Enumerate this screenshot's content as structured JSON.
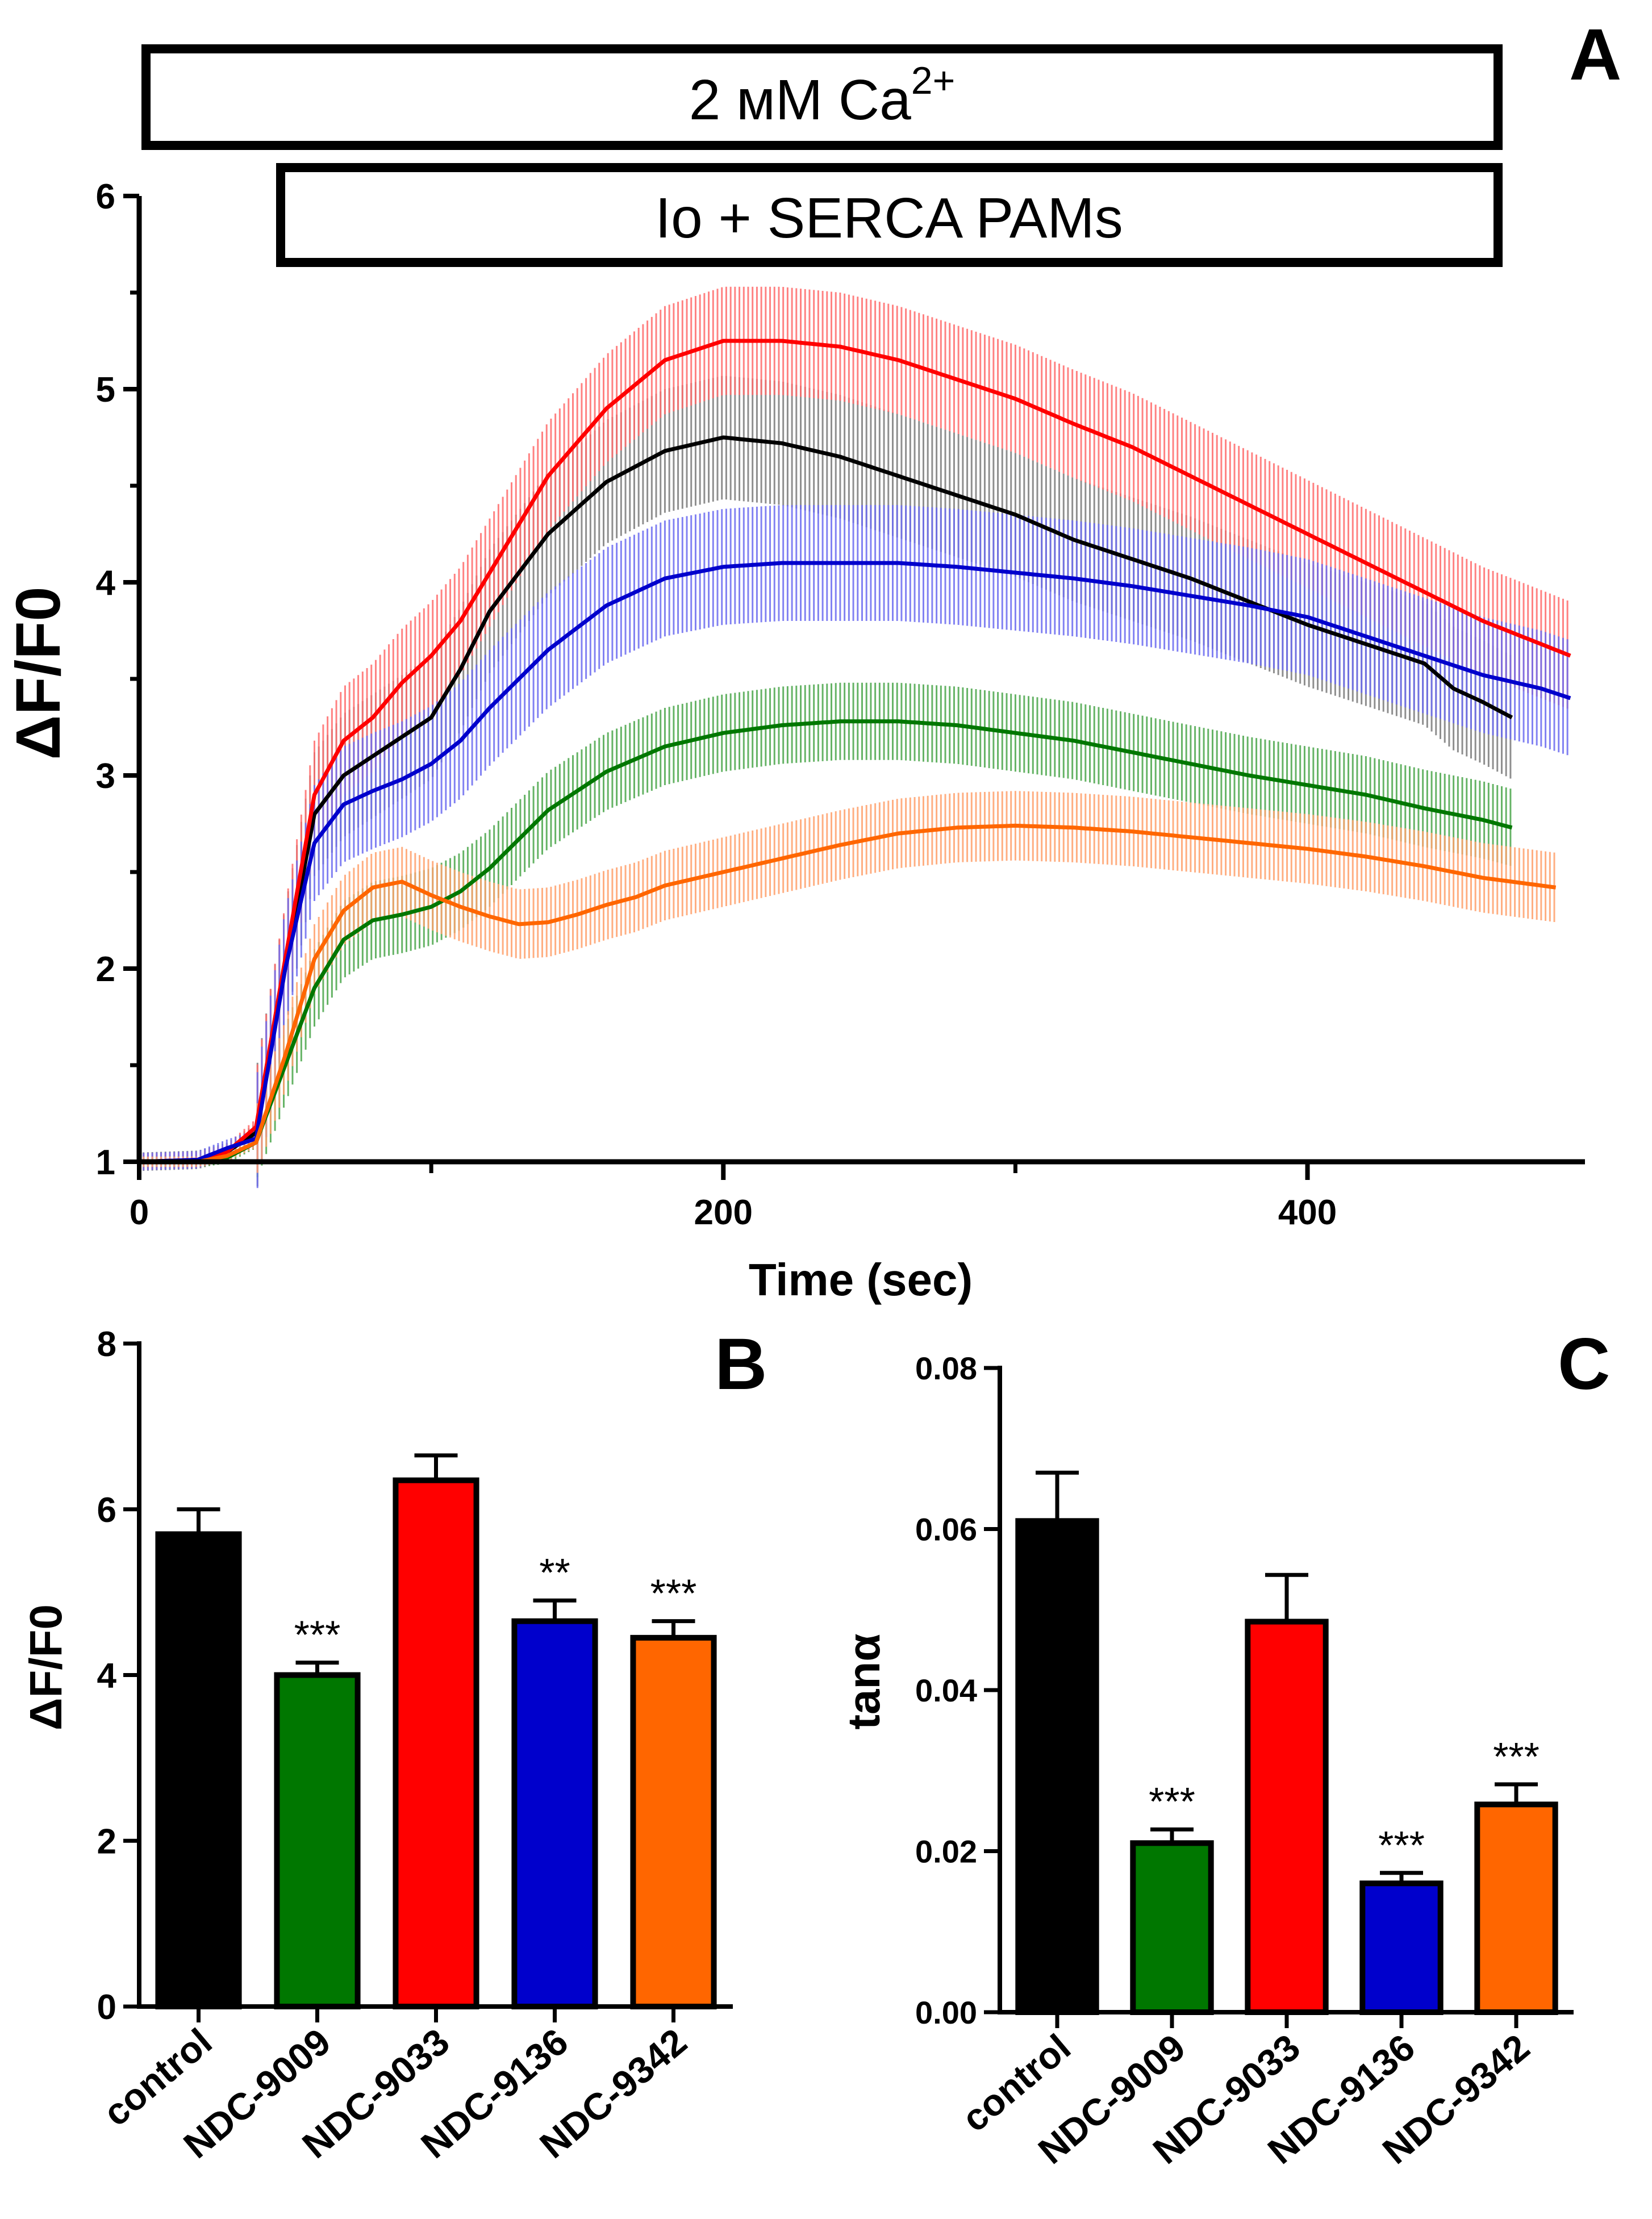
{
  "chart_data": [
    {
      "type": "line",
      "panel": "A",
      "title": "",
      "xlabel": "Time (sec)",
      "ylabel": "ΔF/F0",
      "xlim": [
        0,
        495
      ],
      "ylim": [
        1,
        6
      ],
      "xticks": [
        0,
        200,
        400
      ],
      "yticks": [
        1,
        2,
        3,
        4,
        5,
        6
      ],
      "annotations": [
        {
          "text": "2 мМ Ca",
          "superscript": "2+",
          "start": 0,
          "end": 465
        },
        {
          "text": "Io + SERCA PAMs",
          "start": 48,
          "end": 465
        }
      ],
      "series": [
        {
          "name": "control",
          "color": "#000000",
          "x": [
            0,
            20,
            30,
            40,
            50,
            60,
            70,
            80,
            90,
            100,
            110,
            120,
            140,
            160,
            180,
            200,
            220,
            240,
            260,
            280,
            300,
            320,
            340,
            360,
            380,
            400,
            420,
            440,
            450,
            460,
            470
          ],
          "y": [
            1.0,
            1.01,
            1.05,
            1.15,
            2.0,
            2.8,
            3.0,
            3.1,
            3.2,
            3.3,
            3.55,
            3.85,
            4.25,
            4.52,
            4.68,
            4.75,
            4.72,
            4.65,
            4.55,
            4.45,
            4.35,
            4.22,
            4.12,
            4.02,
            3.9,
            3.78,
            3.68,
            3.58,
            3.45,
            3.38,
            3.3
          ],
          "err": 0.32
        },
        {
          "name": "NDC-9009",
          "color": "#007700",
          "x": [
            0,
            20,
            30,
            40,
            50,
            60,
            70,
            80,
            90,
            100,
            110,
            120,
            140,
            160,
            180,
            200,
            220,
            240,
            260,
            280,
            300,
            320,
            340,
            360,
            380,
            400,
            420,
            440,
            460,
            470
          ],
          "y": [
            1.0,
            1.0,
            1.02,
            1.1,
            1.5,
            1.9,
            2.15,
            2.25,
            2.28,
            2.32,
            2.4,
            2.52,
            2.82,
            3.02,
            3.15,
            3.22,
            3.26,
            3.28,
            3.28,
            3.26,
            3.22,
            3.18,
            3.12,
            3.06,
            3.0,
            2.95,
            2.9,
            2.83,
            2.77,
            2.73
          ],
          "err": 0.2
        },
        {
          "name": "NDC-9033",
          "color": "#ff0000",
          "x": [
            0,
            20,
            30,
            40,
            50,
            60,
            70,
            80,
            90,
            100,
            110,
            120,
            140,
            160,
            180,
            200,
            220,
            240,
            260,
            280,
            300,
            320,
            340,
            360,
            380,
            400,
            420,
            440,
            460,
            480,
            490
          ],
          "y": [
            1.0,
            1.01,
            1.05,
            1.18,
            2.05,
            2.9,
            3.18,
            3.3,
            3.48,
            3.62,
            3.8,
            4.05,
            4.55,
            4.9,
            5.15,
            5.25,
            5.25,
            5.22,
            5.15,
            5.05,
            4.95,
            4.82,
            4.7,
            4.55,
            4.4,
            4.25,
            4.1,
            3.95,
            3.8,
            3.68,
            3.62
          ],
          "err": 0.28
        },
        {
          "name": "NDC-9136",
          "color": "#0000cc",
          "x": [
            0,
            20,
            30,
            40,
            50,
            60,
            70,
            80,
            90,
            100,
            110,
            120,
            140,
            160,
            180,
            200,
            220,
            240,
            260,
            280,
            300,
            320,
            340,
            360,
            380,
            400,
            420,
            440,
            460,
            480,
            490
          ],
          "y": [
            1.0,
            1.01,
            1.07,
            1.12,
            2.0,
            2.65,
            2.85,
            2.92,
            2.98,
            3.06,
            3.18,
            3.35,
            3.65,
            3.88,
            4.02,
            4.08,
            4.1,
            4.1,
            4.1,
            4.08,
            4.05,
            4.02,
            3.98,
            3.93,
            3.88,
            3.82,
            3.72,
            3.62,
            3.52,
            3.45,
            3.4
          ],
          "err": 0.3
        },
        {
          "name": "NDC-9342",
          "color": "#ff6600",
          "x": [
            0,
            20,
            30,
            40,
            50,
            60,
            70,
            80,
            90,
            100,
            110,
            120,
            130,
            140,
            150,
            160,
            170,
            180,
            200,
            220,
            240,
            260,
            280,
            300,
            320,
            340,
            360,
            380,
            400,
            420,
            440,
            450,
            460,
            480,
            485
          ],
          "y": [
            1.0,
            1.0,
            1.03,
            1.1,
            1.55,
            2.05,
            2.3,
            2.42,
            2.45,
            2.38,
            2.32,
            2.27,
            2.23,
            2.24,
            2.28,
            2.33,
            2.37,
            2.43,
            2.5,
            2.57,
            2.64,
            2.7,
            2.73,
            2.74,
            2.73,
            2.71,
            2.68,
            2.65,
            2.62,
            2.58,
            2.53,
            2.5,
            2.47,
            2.43,
            2.42
          ],
          "err": 0.18
        }
      ]
    },
    {
      "type": "bar",
      "panel": "B",
      "title": "",
      "xlabel": "",
      "ylabel": "ΔF/F0",
      "ylim": [
        0,
        8
      ],
      "yticks": [
        0,
        2,
        4,
        6,
        8
      ],
      "categories": [
        "control",
        "NDC-9009",
        "NDC-9033",
        "NDC-9136",
        "NDC-9342"
      ],
      "values": [
        5.7,
        4.0,
        6.35,
        4.65,
        4.45
      ],
      "errors": [
        0.3,
        0.15,
        0.3,
        0.25,
        0.2
      ],
      "colors": [
        "#000000",
        "#007700",
        "#ff0000",
        "#0000cc",
        "#ff6600"
      ],
      "significance": [
        "",
        "***",
        "",
        "**",
        "***"
      ]
    },
    {
      "type": "bar",
      "panel": "C",
      "title": "",
      "xlabel": "",
      "ylabel": "tanα",
      "ylim": [
        0,
        0.08
      ],
      "yticks": [
        "0.00",
        "0.02",
        "0.04",
        "0.06",
        "0.08"
      ],
      "categories": [
        "control",
        "NDC-9009",
        "NDC-9033",
        "NDC-9136",
        "NDC-9342"
      ],
      "values": [
        0.061,
        0.021,
        0.0485,
        0.016,
        0.0258
      ],
      "errors": [
        0.006,
        0.0017,
        0.0058,
        0.0013,
        0.0025
      ],
      "colors": [
        "#000000",
        "#007700",
        "#ff0000",
        "#0000cc",
        "#ff6600"
      ],
      "significance": [
        "",
        "***",
        "",
        "***",
        "***"
      ]
    }
  ]
}
